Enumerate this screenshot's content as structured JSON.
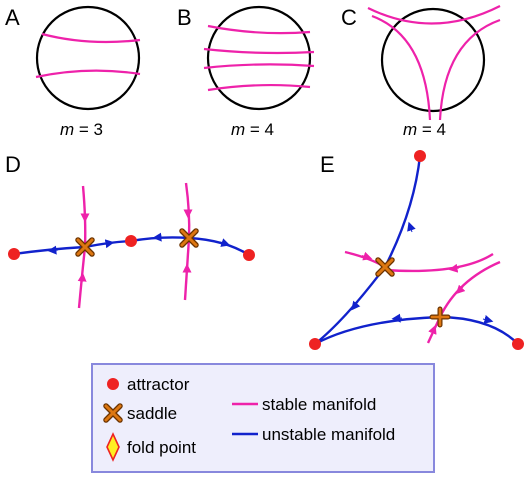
{
  "panels": {
    "A": {
      "label": "A",
      "m_var": "m",
      "m_rest": " = 3"
    },
    "B": {
      "label": "B",
      "m_var": "m",
      "m_rest": " = 4"
    },
    "C": {
      "label": "C",
      "m_var": "m",
      "m_rest": " = 4"
    },
    "D": {
      "label": "D"
    },
    "E": {
      "label": "E"
    }
  },
  "legend": {
    "attractor": "attractor",
    "saddle": "saddle",
    "fold_point": "fold point",
    "stable_manifold": "stable manifold",
    "unstable_manifold": "unstable manifold"
  },
  "colors": {
    "stable": "#ee22aa",
    "unstable": "#1122cc",
    "attractor": "#ee2222",
    "saddle": "#dd7711",
    "fold_fill": "#ffee22",
    "fold_stroke": "#ee2222",
    "legend_border": "#8888dd",
    "legend_bg": "#eeeefc"
  }
}
